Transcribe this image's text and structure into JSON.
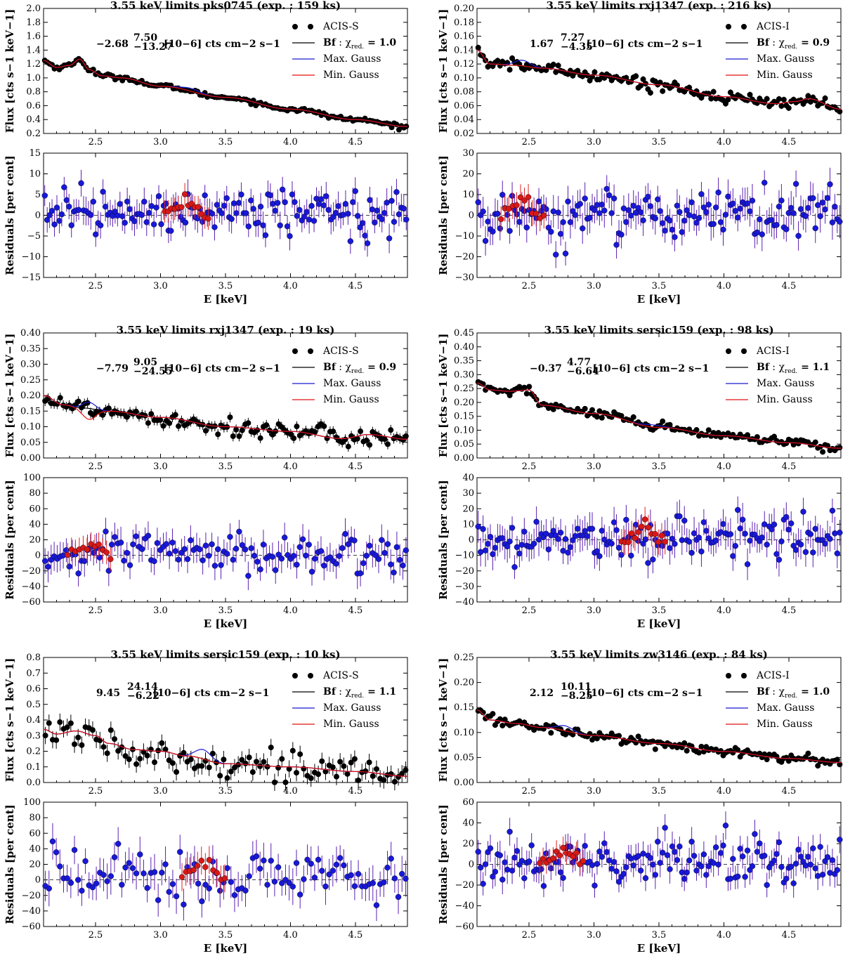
{
  "chart_data": [
    {
      "type": "scatter",
      "title": "3.55 keV limits pks0745 (exp. : 159 ks)",
      "xlabel": "E [keV]",
      "ylabel_top": "Flux [cts s−1 keV−1]",
      "ylabel_bottom": "Residuals [per cent]",
      "xlim": [
        2.1,
        4.9
      ],
      "xticks": [
        "2.5",
        "3.0",
        "3.5",
        "4.0",
        "4.5"
      ],
      "flux_ylim": [
        0.2,
        2.0
      ],
      "flux_yticks": [
        "0.2",
        "0.4",
        "0.6",
        "0.8",
        "1.0",
        "1.2",
        "1.4",
        "1.6",
        "1.8",
        "2.0"
      ],
      "resid_ylim": [
        -15,
        15
      ],
      "resid_yticks": [
        "−15",
        "−10",
        "−5",
        "0",
        "5",
        "10",
        "15"
      ],
      "annotation": {
        "value": "−2.68",
        "sup": "7.50",
        "sub": "−13.27",
        "units": "[10−6] cts cm−2 s−1"
      },
      "legend": {
        "detector": "ACIS-S",
        "bf_label": "Bf",
        "chi2": "1.0",
        "max": "Max. Gauss",
        "min": "Min. Gauss"
      },
      "flux_curve": [
        [
          2.1,
          1.25
        ],
        [
          2.2,
          1.15
        ],
        [
          2.3,
          1.18
        ],
        [
          2.38,
          1.27
        ],
        [
          2.45,
          1.12
        ],
        [
          2.55,
          1.03
        ],
        [
          2.7,
          1.0
        ],
        [
          3.0,
          0.88
        ],
        [
          3.5,
          0.72
        ],
        [
          4.0,
          0.55
        ],
        [
          4.5,
          0.4
        ],
        [
          4.9,
          0.3
        ]
      ],
      "line_center": 3.23,
      "line_width": 0.07,
      "max_amp": 0.04,
      "min_amp": 0.0,
      "flux_noise": 0.015,
      "resid_sigma": 2.6,
      "resid_err": 3.0,
      "red_center": 3.2,
      "red_amp": 3.5,
      "red_count": 14,
      "n_points": 150
    },
    {
      "type": "scatter",
      "title": "3.55 keV limits rxj1347 (exp. : 216 ks)",
      "xlabel": "E [keV]",
      "ylabel_top": "Flux [cts s−1 keV−1]",
      "ylabel_bottom": "Residuals [per cent]",
      "xlim": [
        2.1,
        4.9
      ],
      "xticks": [
        "2.5",
        "3.0",
        "3.5",
        "4.0",
        "4.5"
      ],
      "flux_ylim": [
        0.02,
        0.2
      ],
      "flux_yticks": [
        "0.02",
        "0.04",
        "0.06",
        "0.08",
        "0.10",
        "0.12",
        "0.14",
        "0.16",
        "0.18",
        "0.20"
      ],
      "resid_ylim": [
        -30,
        30
      ],
      "resid_yticks": [
        "−30",
        "−20",
        "−10",
        "0",
        "10",
        "20",
        "30"
      ],
      "annotation": {
        "value": "1.67",
        "sup": "7.27",
        "sub": "−4.35",
        "units": "[10−6] cts cm−2 s−1"
      },
      "legend": {
        "detector": "ACIS-I",
        "bf_label": "Bf",
        "chi2": "0.9",
        "max": "Max. Gauss",
        "min": "Min. Gauss"
      },
      "flux_curve": [
        [
          2.1,
          0.14
        ],
        [
          2.2,
          0.12
        ],
        [
          2.4,
          0.118
        ],
        [
          2.6,
          0.114
        ],
        [
          3.0,
          0.104
        ],
        [
          3.5,
          0.09
        ],
        [
          4.0,
          0.073
        ],
        [
          4.4,
          0.063
        ],
        [
          4.55,
          0.066
        ],
        [
          4.65,
          0.07
        ],
        [
          4.9,
          0.055
        ]
      ],
      "line_center": 2.45,
      "line_width": 0.06,
      "max_amp": 0.008,
      "min_amp": 0.0,
      "flux_noise": 0.004,
      "resid_sigma": 6,
      "resid_err": 7,
      "red_center": 2.45,
      "red_amp": 7,
      "red_count": 12,
      "n_points": 150
    },
    {
      "type": "scatter",
      "title": "3.55 keV limits rxj1347 (exp. : 19 ks)",
      "xlabel": "E [keV]",
      "ylabel_top": "Flux [cts s−1 keV−1]",
      "ylabel_bottom": "Residuals [per cent]",
      "xlim": [
        2.1,
        4.9
      ],
      "xticks": [
        "2.5",
        "3.0",
        "3.5",
        "4.0",
        "4.5"
      ],
      "flux_ylim": [
        0.0,
        0.4
      ],
      "flux_yticks": [
        "0.00",
        "0.05",
        "0.10",
        "0.15",
        "0.20",
        "0.25",
        "0.30",
        "0.35",
        "0.40"
      ],
      "resid_ylim": [
        -60,
        100
      ],
      "resid_yticks": [
        "−60",
        "−40",
        "−20",
        "0",
        "20",
        "40",
        "60",
        "80",
        "100"
      ],
      "annotation": {
        "value": "−7.79",
        "sup": "9.05",
        "sub": "−24.55",
        "units": "[10−6] cts cm−2 s−1"
      },
      "legend": {
        "detector": "ACIS-S",
        "bf_label": "Bf",
        "chi2": "0.9",
        "max": "Max. Gauss",
        "min": "Min. Gauss"
      },
      "flux_curve": [
        [
          2.1,
          0.2
        ],
        [
          2.25,
          0.17
        ],
        [
          2.4,
          0.16
        ],
        [
          2.6,
          0.15
        ],
        [
          3.0,
          0.13
        ],
        [
          3.5,
          0.1
        ],
        [
          4.0,
          0.085
        ],
        [
          4.4,
          0.062
        ],
        [
          4.6,
          0.075
        ],
        [
          4.9,
          0.06
        ]
      ],
      "line_center": 2.45,
      "line_width": 0.05,
      "max_amp": 0.02,
      "min_amp": -0.035,
      "flux_noise": 0.015,
      "resid_sigma": 13,
      "resid_err": 17,
      "red_center": 2.45,
      "red_amp": 18,
      "red_count": 12,
      "n_points": 120
    },
    {
      "type": "scatter",
      "title": "3.55 keV limits sersic159 (exp. : 98 ks)",
      "xlabel": "E [keV]",
      "ylabel_top": "Flux [cts s−1 keV−1]",
      "ylabel_bottom": "Residuals [per cent]",
      "xlim": [
        2.1,
        4.9
      ],
      "xticks": [
        "2.5",
        "3.0",
        "3.5",
        "4.0",
        "4.5"
      ],
      "flux_ylim": [
        0.0,
        0.45
      ],
      "flux_yticks": [
        "0.00",
        "0.05",
        "0.10",
        "0.15",
        "0.20",
        "0.25",
        "0.30",
        "0.35",
        "0.40",
        "0.45"
      ],
      "resid_ylim": [
        -40,
        40
      ],
      "resid_yticks": [
        "−40",
        "−30",
        "−20",
        "−10",
        "0",
        "10",
        "20",
        "30",
        "40"
      ],
      "annotation": {
        "value": "−0.37",
        "sup": "4.77",
        "sub": "−6.64",
        "units": "[10−6] cts cm−2 s−1"
      },
      "legend": {
        "detector": "ACIS-I",
        "bf_label": "Bf",
        "chi2": "1.1",
        "max": "Max. Gauss",
        "min": "Min. Gauss"
      },
      "flux_curve": [
        [
          2.1,
          0.27
        ],
        [
          2.2,
          0.245
        ],
        [
          2.35,
          0.24
        ],
        [
          2.5,
          0.245
        ],
        [
          2.6,
          0.19
        ],
        [
          3.0,
          0.16
        ],
        [
          3.5,
          0.11
        ],
        [
          4.0,
          0.08
        ],
        [
          4.5,
          0.055
        ],
        [
          4.9,
          0.035
        ]
      ],
      "line_center": 3.45,
      "line_width": 0.07,
      "max_amp": 0.008,
      "min_amp": 0.0,
      "flux_noise": 0.008,
      "resid_sigma": 7,
      "resid_err": 9,
      "red_center": 3.38,
      "red_amp": 8,
      "red_count": 14,
      "n_points": 150
    },
    {
      "type": "scatter",
      "title": "3.55 keV limits sersic159 (exp. : 10 ks)",
      "xlabel": "E [keV]",
      "ylabel_top": "Flux [cts s−1 keV−1]",
      "ylabel_bottom": "Residuals [per cent]",
      "xlim": [
        2.1,
        4.9
      ],
      "xticks": [
        "2.5",
        "3.0",
        "3.5",
        "4.0",
        "4.5"
      ],
      "flux_ylim": [
        0.0,
        0.8
      ],
      "flux_yticks": [
        "0.0",
        "0.1",
        "0.2",
        "0.3",
        "0.4",
        "0.5",
        "0.6",
        "0.7",
        "0.8"
      ],
      "resid_ylim": [
        -60,
        100
      ],
      "resid_yticks": [
        "−60",
        "−40",
        "−20",
        "0",
        "20",
        "40",
        "60",
        "80",
        "100"
      ],
      "annotation": {
        "value": "9.45",
        "sup": "24.14",
        "sub": "−6.22",
        "units": "[10−6] cts cm−2 s−1"
      },
      "legend": {
        "detector": "ACIS-S",
        "bf_label": "Bf",
        "chi2": "1.1",
        "max": "Max. Gauss",
        "min": "Min. Gauss"
      },
      "flux_curve": [
        [
          2.1,
          0.34
        ],
        [
          2.2,
          0.31
        ],
        [
          2.35,
          0.33
        ],
        [
          2.5,
          0.3
        ],
        [
          2.6,
          0.25
        ],
        [
          2.8,
          0.21
        ],
        [
          3.0,
          0.2
        ],
        [
          3.2,
          0.17
        ],
        [
          3.5,
          0.12
        ],
        [
          4.0,
          0.1
        ],
        [
          4.5,
          0.07
        ],
        [
          4.9,
          0.04
        ]
      ],
      "line_center": 3.33,
      "line_width": 0.06,
      "max_amp": 0.06,
      "min_amp": 0.0,
      "flux_noise": 0.05,
      "resid_sigma": 18,
      "resid_err": 20,
      "red_center": 3.33,
      "red_amp": 25,
      "red_count": 12,
      "n_points": 100
    },
    {
      "type": "scatter",
      "title": "3.55 keV limits zw3146 (exp. : 84 ks)",
      "xlabel": "E [keV]",
      "ylabel_top": "Flux [cts s−1 keV−1]",
      "ylabel_bottom": "Residuals [per cent]",
      "xlim": [
        2.1,
        4.9
      ],
      "xticks": [
        "2.5",
        "3.0",
        "3.5",
        "4.0",
        "4.5"
      ],
      "flux_ylim": [
        0.0,
        0.25
      ],
      "flux_yticks": [
        "0.00",
        "0.05",
        "0.10",
        "0.15",
        "0.20",
        "0.25"
      ],
      "resid_ylim": [
        -60,
        60
      ],
      "resid_yticks": [
        "−60",
        "−40",
        "−20",
        "0",
        "20",
        "40",
        "60"
      ],
      "annotation": {
        "value": "2.12",
        "sup": "10.11",
        "sub": "−8.25",
        "units": "[10−6] cts cm−2 s−1"
      },
      "legend": {
        "detector": "ACIS-I",
        "bf_label": "Bf",
        "chi2": "1.0",
        "max": "Max. Gauss",
        "min": "Min. Gauss"
      },
      "flux_curve": [
        [
          2.1,
          0.145
        ],
        [
          2.2,
          0.125
        ],
        [
          2.4,
          0.118
        ],
        [
          2.6,
          0.11
        ],
        [
          3.0,
          0.094
        ],
        [
          3.5,
          0.078
        ],
        [
          4.0,
          0.062
        ],
        [
          4.5,
          0.048
        ],
        [
          4.9,
          0.04
        ]
      ],
      "line_center": 2.78,
      "line_width": 0.06,
      "max_amp": 0.01,
      "min_amp": 0.0,
      "flux_noise": 0.005,
      "resid_sigma": 10,
      "resid_err": 12,
      "red_center": 2.75,
      "red_amp": 15,
      "red_count": 14,
      "n_points": 150
    }
  ]
}
